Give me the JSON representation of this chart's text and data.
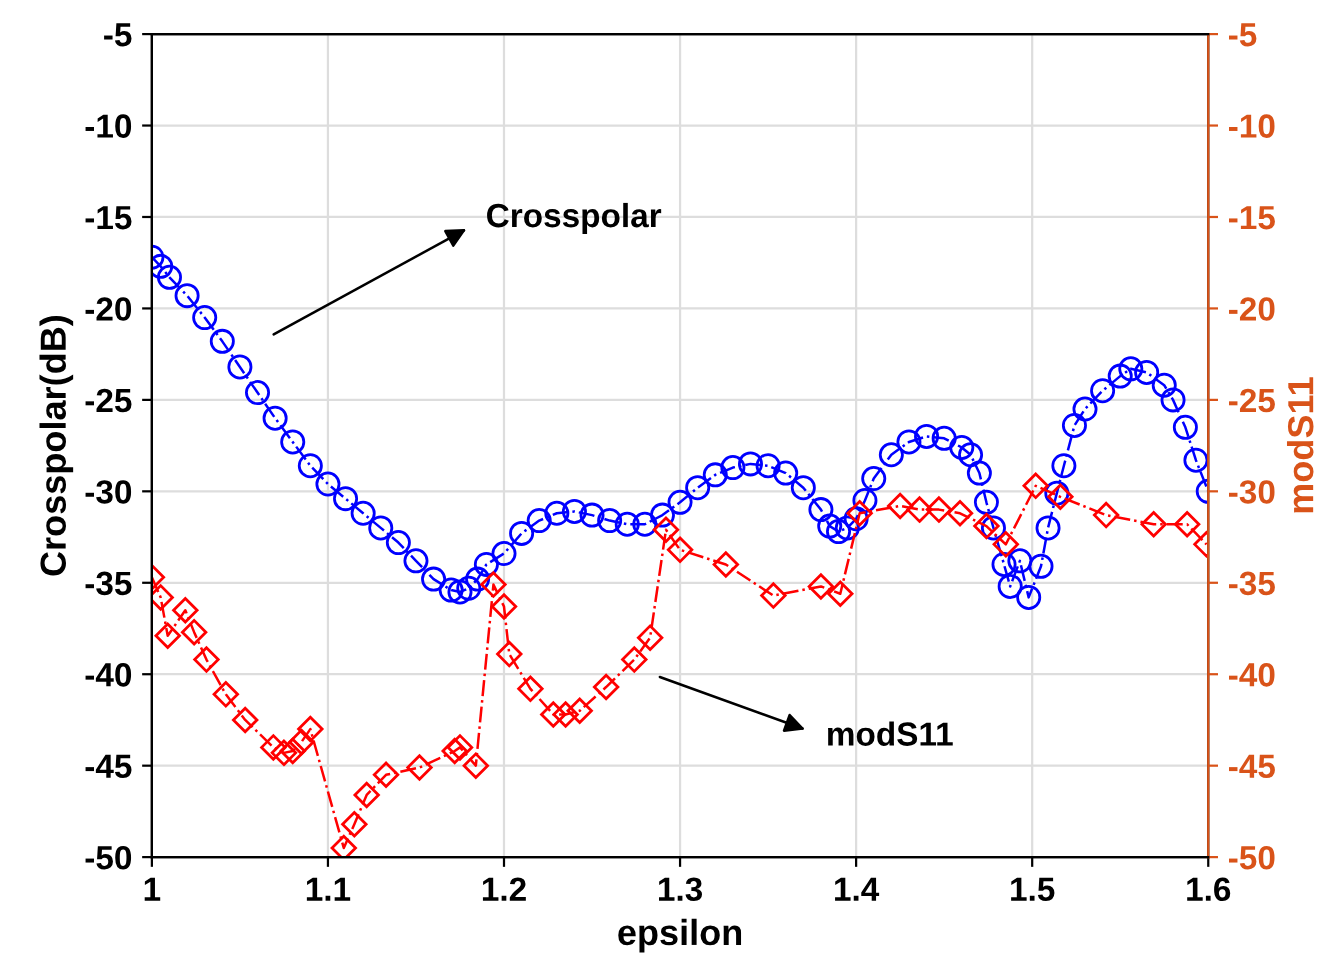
{
  "chart_data": {
    "type": "line",
    "xlabel": "epsilon",
    "ylabel": "Crosspolar(dB)",
    "y2label": "modS11",
    "xlim": [
      1,
      1.6
    ],
    "xticks": [
      1,
      1.1,
      1.2,
      1.3,
      1.4,
      1.5,
      1.6
    ],
    "ylim": [
      -50,
      -5
    ],
    "yticks": [
      -50,
      -45,
      -40,
      -35,
      -30,
      -25,
      -20,
      -15,
      -10,
      -5
    ],
    "y2lim": [
      -50,
      -5
    ],
    "y2ticks": [
      -50,
      -45,
      -40,
      -35,
      -30,
      -25,
      -20,
      -15,
      -10,
      -5
    ],
    "grid": true,
    "legend": false,
    "series": [
      {
        "color": "#0000ff",
        "marker": "circle",
        "line_style": "dashed",
        "x": [
          1.0,
          1.005,
          1.01,
          1.02,
          1.03,
          1.04,
          1.05,
          1.06,
          1.07,
          1.08,
          1.09,
          1.1,
          1.11,
          1.12,
          1.13,
          1.14,
          1.15,
          1.16,
          1.17,
          1.175,
          1.18,
          1.185,
          1.19,
          1.2,
          1.21,
          1.22,
          1.23,
          1.24,
          1.25,
          1.26,
          1.27,
          1.28,
          1.29,
          1.3,
          1.31,
          1.32,
          1.33,
          1.34,
          1.35,
          1.36,
          1.37,
          1.38,
          1.385,
          1.39,
          1.395,
          1.4,
          1.405,
          1.41,
          1.42,
          1.43,
          1.44,
          1.45,
          1.46,
          1.465,
          1.47,
          1.474,
          1.478,
          1.484,
          1.4875,
          1.493,
          1.498,
          1.505,
          1.509,
          1.514,
          1.518,
          1.524,
          1.53,
          1.54,
          1.55,
          1.556,
          1.565,
          1.575,
          1.58,
          1.587,
          1.593,
          1.6
        ],
        "values": [
          -17.2,
          -17.7,
          -18.3,
          -19.3,
          -20.5,
          -21.8,
          -23.2,
          -24.6,
          -26.0,
          -27.3,
          -28.6,
          -29.6,
          -30.4,
          -31.2,
          -32.0,
          -32.8,
          -33.8,
          -34.8,
          -35.4,
          -35.5,
          -35.3,
          -34.8,
          -34.0,
          -33.4,
          -32.3,
          -31.6,
          -31.2,
          -31.1,
          -31.3,
          -31.6,
          -31.8,
          -31.8,
          -31.3,
          -30.6,
          -29.8,
          -29.1,
          -28.7,
          -28.5,
          -28.6,
          -29.0,
          -29.8,
          -31.0,
          -31.9,
          -32.2,
          -32.0,
          -31.5,
          -30.5,
          -29.3,
          -28.0,
          -27.3,
          -27.0,
          -27.1,
          -27.6,
          -28.0,
          -29.0,
          -30.6,
          -32.0,
          -34.0,
          -35.2,
          -33.8,
          -35.8,
          -34.1,
          -32.0,
          -30.1,
          -28.6,
          -26.4,
          -25.5,
          -24.5,
          -23.7,
          -23.3,
          -23.5,
          -24.2,
          -25.0,
          -26.5,
          -28.3,
          -30.0
        ]
      },
      {
        "color": "#ff0000",
        "marker": "diamond",
        "line_style": "dashed",
        "axis": "y2",
        "x": [
          1.0,
          1.005,
          1.009,
          1.019,
          1.024,
          1.031,
          1.042,
          1.053,
          1.069,
          1.075,
          1.08,
          1.085,
          1.09,
          1.109,
          1.115,
          1.122,
          1.133,
          1.152,
          1.172,
          1.175,
          1.184,
          1.194,
          1.2,
          1.203,
          1.215,
          1.228,
          1.235,
          1.243,
          1.258,
          1.274,
          1.283,
          1.292,
          1.3,
          1.326,
          1.353,
          1.38,
          1.391,
          1.402,
          1.425,
          1.436,
          1.447,
          1.459,
          1.474,
          1.485,
          1.502,
          1.516,
          1.542,
          1.569,
          1.588,
          1.599
        ],
        "values": [
          -34.7,
          -35.8,
          -37.9,
          -36.5,
          -37.7,
          -39.2,
          -41.1,
          -42.5,
          -44.0,
          -44.3,
          -44.2,
          -43.7,
          -43.0,
          -49.5,
          -48.2,
          -46.6,
          -45.5,
          -45.1,
          -44.2,
          -44.0,
          -45.0,
          -35.1,
          -36.3,
          -38.9,
          -40.8,
          -42.2,
          -42.2,
          -42.0,
          -40.7,
          -39.2,
          -38.0,
          -32.1,
          -33.2,
          -34.0,
          -35.7,
          -35.2,
          -35.6,
          -31.2,
          -30.8,
          -31.0,
          -31.0,
          -31.2,
          -31.9,
          -32.9,
          -29.7,
          -30.3,
          -31.3,
          -31.8,
          -31.8,
          -32.9
        ]
      }
    ],
    "annotations": [
      "Crosspolar",
      "modS11"
    ]
  }
}
